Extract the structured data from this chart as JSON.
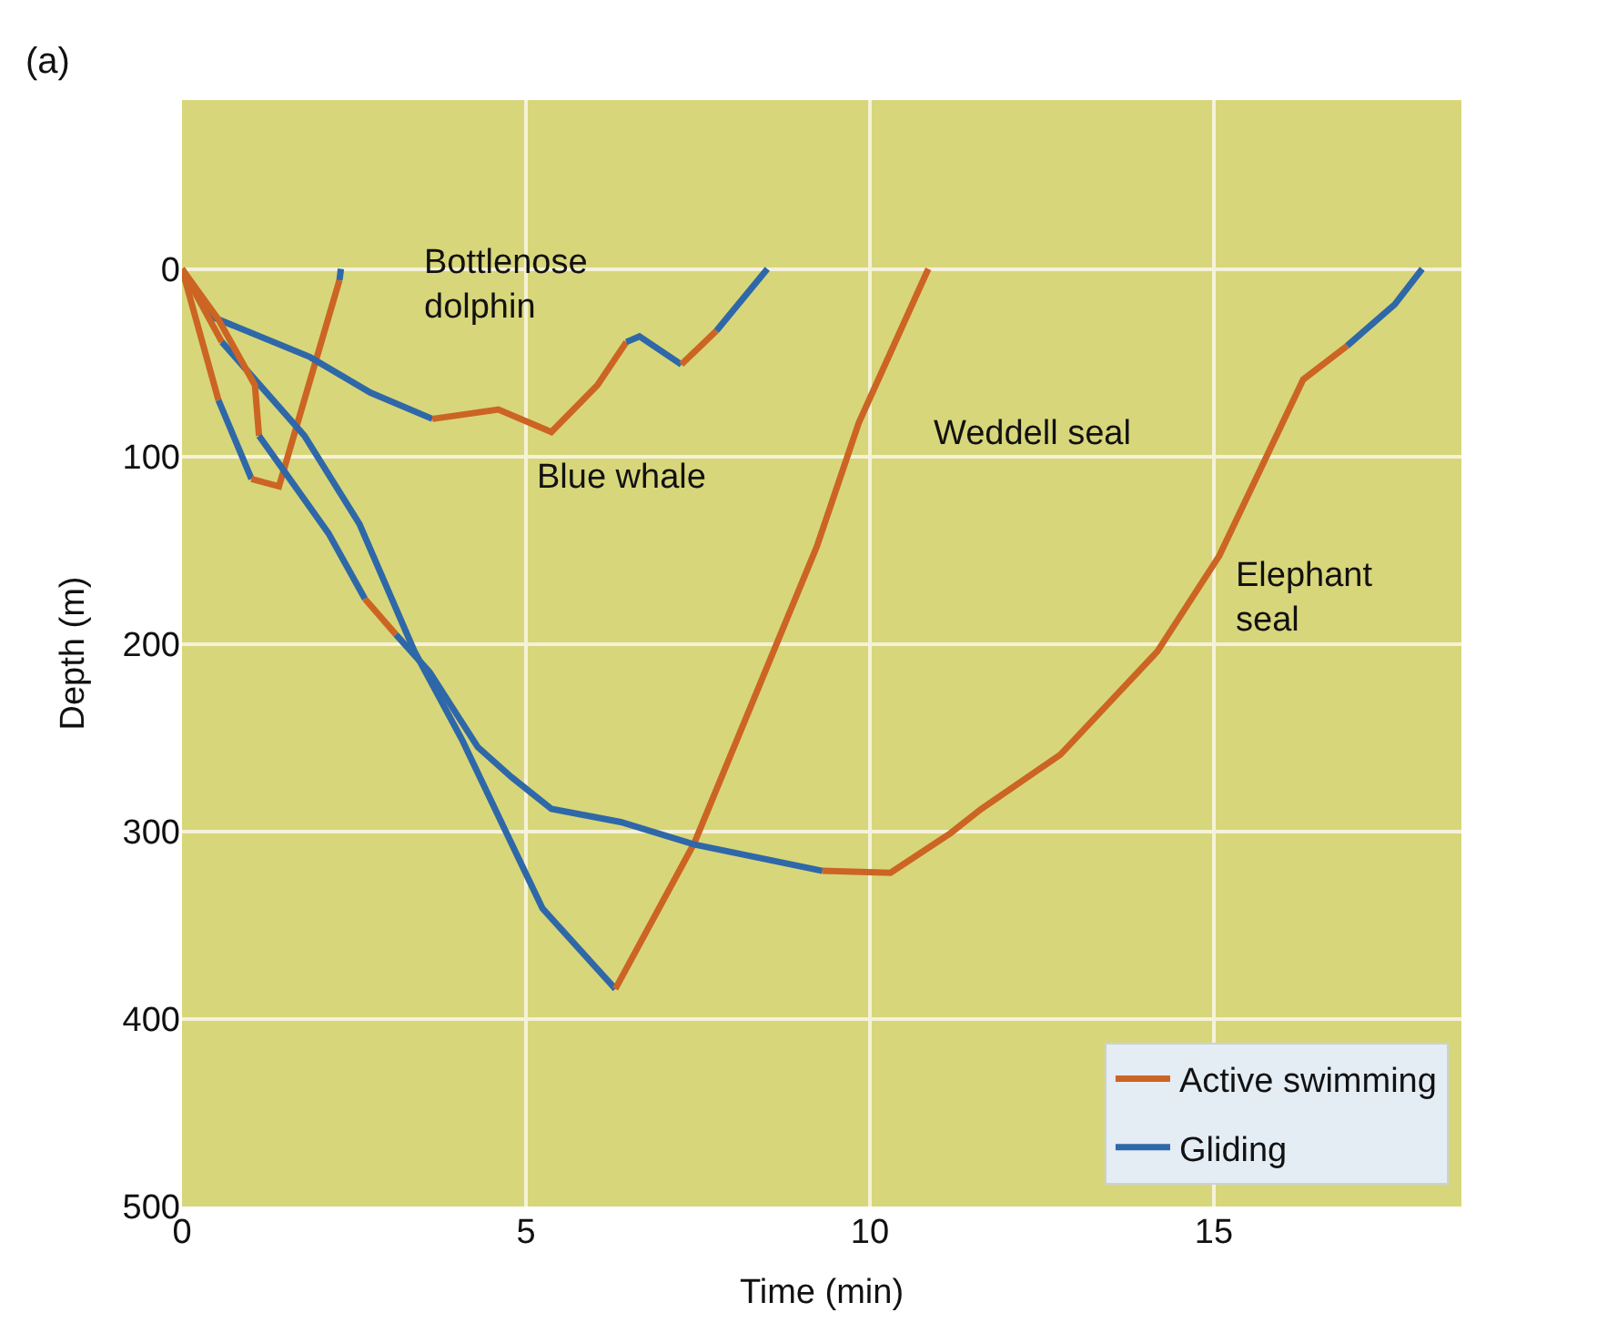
{
  "chart_data": {
    "type": "line",
    "xlabel": "Time (min)",
    "ylabel": "Depth (m)",
    "xlim": [
      0,
      18.6
    ],
    "xticks": [
      0,
      5,
      10,
      15
    ],
    "ylim": [
      500,
      -90
    ],
    "yticks": [
      0,
      100,
      200,
      300,
      400,
      500
    ],
    "grid": true,
    "legend": "bottom right",
    "line_style": "solid",
    "marker": "none",
    "annotations": [
      "(a)",
      "Bottlenose\ndolphin",
      "Blue whale",
      "Weddell seal",
      "Elephant\nseal"
    ],
    "series": [
      {
        "name": "Active swimming",
        "color": "#cc6424",
        "x": [
          0,
          0.53
        ],
        "values": [
          0,
          70
        ]
      },
      {
        "name": "Gliding",
        "color": "#2f68a8",
        "x": [
          0.53,
          1.01
        ],
        "values": [
          70,
          112
        ]
      },
      {
        "color": "#cc6424",
        "x": [
          1.01,
          1.41,
          2.29
        ],
        "values": [
          112,
          116,
          6
        ]
      },
      {
        "color": "#2f68a8",
        "x": [
          2.29,
          2.31
        ],
        "values": [
          6,
          0
        ]
      },
      {
        "color": "#2f68a8",
        "x": [
          0,
          0.4,
          1.86,
          2.74,
          3.64
        ],
        "values": [
          0,
          25,
          47,
          66,
          80
        ]
      },
      {
        "color": "#cc6424",
        "x": [
          3.64,
          4.6,
          5.37,
          6.04,
          6.46
        ],
        "values": [
          80,
          75,
          87,
          62,
          39
        ]
      },
      {
        "color": "#2f68a8",
        "x": [
          6.46,
          6.65,
          7.26
        ],
        "values": [
          39,
          36,
          51
        ]
      },
      {
        "color": "#cc6424",
        "x": [
          7.26,
          7.77
        ],
        "values": [
          51,
          33
        ]
      },
      {
        "color": "#2f68a8",
        "x": [
          7.77,
          8.51
        ],
        "values": [
          33,
          0
        ]
      },
      {
        "color": "#cc6424",
        "x": [
          0,
          0.58
        ],
        "values": [
          0,
          39
        ]
      },
      {
        "color": "#2f68a8",
        "x": [
          0.58,
          1.78,
          2.58,
          3.38,
          4.07,
          5.24,
          6.3
        ],
        "values": [
          39,
          89,
          136,
          204,
          251,
          341,
          384
        ]
      },
      {
        "color": "#cc6424",
        "x": [
          6.3,
          7.45,
          9.23,
          9.84,
          10.85
        ],
        "values": [
          384,
          306,
          148,
          82,
          0
        ]
      },
      {
        "color": "#cc6424",
        "x": [
          0,
          0.53,
          1.06,
          1.12
        ],
        "values": [
          0,
          27,
          62,
          89
        ]
      },
      {
        "color": "#2f68a8",
        "x": [
          1.12,
          2.13,
          2.66
        ],
        "values": [
          89,
          141,
          176
        ]
      },
      {
        "color": "#cc6424",
        "x": [
          2.66,
          3.11
        ],
        "values": [
          176,
          195
        ]
      },
      {
        "color": "#2f68a8",
        "x": [
          3.11,
          3.6,
          4.3,
          4.79,
          5.37,
          6.38,
          7.45,
          9.31
        ],
        "values": [
          195,
          215,
          255,
          271,
          288,
          295,
          307,
          321
        ]
      },
      {
        "color": "#cc6424",
        "x": [
          9.31,
          10.3,
          11.17,
          11.62,
          12.77,
          14.18,
          15.08,
          16.3,
          16.94
        ],
        "values": [
          321,
          322,
          301,
          288,
          259,
          204,
          153,
          59,
          41
        ]
      },
      {
        "color": "#2f68a8",
        "x": [
          16.94,
          17.63,
          18.03
        ],
        "values": [
          41,
          19,
          0
        ]
      }
    ]
  }
}
